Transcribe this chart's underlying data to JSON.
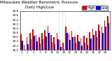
{
  "title": "Milwaukee Weather Barometric Pressure",
  "subtitle": "Daily High/Low",
  "legend_high": "High",
  "legend_low": "Low",
  "bar_width": 0.38,
  "high_color": "#cc0000",
  "low_color": "#0000cc",
  "background_color": "#ffffff",
  "ylim": [
    29.0,
    30.8
  ],
  "ytick_labels": [
    "29.0",
    "29.2",
    "29.4",
    "29.6",
    "29.8",
    "30.0",
    "30.2",
    "30.4",
    "30.6",
    "30.8"
  ],
  "ytick_vals": [
    29.0,
    29.2,
    29.4,
    29.6,
    29.8,
    30.0,
    30.2,
    30.4,
    30.6,
    30.8
  ],
  "n_days": 30,
  "highs": [
    29.72,
    29.25,
    29.58,
    29.8,
    29.95,
    29.7,
    29.6,
    29.78,
    29.92,
    30.1,
    29.68,
    29.58,
    29.8,
    29.45,
    29.35,
    30.08,
    29.75,
    29.88,
    29.62,
    29.7,
    29.52,
    29.65,
    29.55,
    29.82,
    29.98,
    29.88,
    30.18,
    30.08,
    30.38,
    30.55
  ],
  "lows": [
    29.42,
    29.0,
    29.28,
    29.5,
    29.65,
    29.4,
    29.3,
    29.48,
    29.62,
    29.8,
    29.38,
    29.28,
    29.5,
    29.15,
    29.05,
    29.78,
    29.45,
    29.58,
    29.32,
    29.4,
    29.22,
    29.35,
    29.25,
    29.52,
    29.68,
    29.58,
    29.88,
    29.78,
    30.08,
    30.25
  ],
  "dashed_vlines": [
    13.5,
    14.5,
    15.5
  ],
  "title_fontsize": 4.0,
  "tick_fontsize": 3.0,
  "legend_fontsize": 3.5,
  "ybaseline": 29.0
}
